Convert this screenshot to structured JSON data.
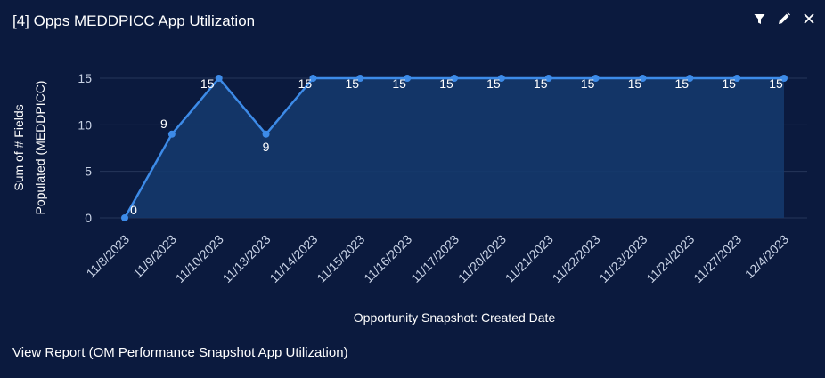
{
  "header": {
    "title": "[4] Opps MEDDPICC App Utilization",
    "tools": [
      {
        "name": "filter-icon",
        "label": "Filter"
      },
      {
        "name": "edit-icon",
        "label": "Edit"
      },
      {
        "name": "close-icon",
        "label": "Close"
      }
    ]
  },
  "footer": {
    "link_text": "View Report (OM Performance Snapshot App Utilization)"
  },
  "colors": {
    "background": "#0b1a3e",
    "line": "#3d8be8",
    "area": "#14386b",
    "grid": "#26365a",
    "text": "#ffffff",
    "tick": "#c9d3e6"
  },
  "chart_data": {
    "type": "area",
    "title": "",
    "xlabel": "Opportunity Snapshot: Created Date",
    "ylabel_lines": [
      "Sum of # Fields",
      "Populated (MEDDPICC)"
    ],
    "ylim": [
      0,
      15
    ],
    "yticks": [
      0,
      5,
      10,
      15
    ],
    "categories": [
      "11/8/2023",
      "11/9/2023",
      "11/10/2023",
      "11/13/2023",
      "11/14/2023",
      "11/15/2023",
      "11/16/2023",
      "11/17/2023",
      "11/20/2023",
      "11/21/2023",
      "11/22/2023",
      "11/23/2023",
      "11/24/2023",
      "11/27/2023",
      "12/4/2023"
    ],
    "series": [
      {
        "name": "Sum of # Fields Populated (MEDDPICC)",
        "values": [
          0,
          9,
          15,
          9,
          15,
          15,
          15,
          15,
          15,
          15,
          15,
          15,
          15,
          15,
          15
        ]
      }
    ],
    "data_labels": true,
    "grid": true
  }
}
